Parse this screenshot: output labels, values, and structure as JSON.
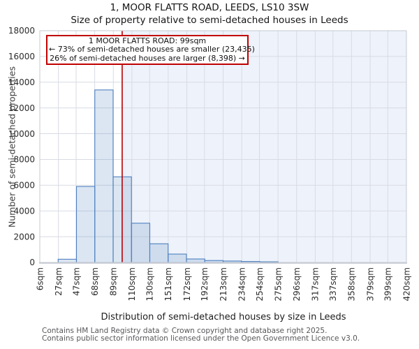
{
  "title": "1, MOOR FLATTS ROAD, LEEDS, LS10 3SW",
  "subtitle": "Size of property relative to semi-detached houses in Leeds",
  "annotation": {
    "line1": "1 MOOR FLATTS ROAD: 99sqm",
    "line2": "← 73% of semi-detached houses are smaller (23,435)",
    "line3": "26% of semi-detached houses are larger (8,398) →"
  },
  "footer": {
    "line1": "Contains HM Land Registry data © Crown copyright and database right 2025.",
    "line2": "Contains public sector information licensed under the Open Government Licence v3.0."
  },
  "chart_data": {
    "type": "bar",
    "title": "1, MOOR FLATTS ROAD, LEEDS, LS10 3SW",
    "subtitle": "Size of property relative to semi-detached houses in Leeds",
    "xlabel": "Distribution of semi-detached houses by size in Leeds",
    "ylabel": "Number of semi-detached properties",
    "xlim": [
      6,
      420
    ],
    "ylim": [
      0,
      18000
    ],
    "y_tick_step": 2000,
    "grid": true,
    "x_tick_values_sqm": [
      6,
      27,
      47,
      68,
      89,
      110,
      130,
      151,
      172,
      192,
      213,
      234,
      254,
      275,
      296,
      317,
      337,
      358,
      379,
      399,
      420
    ],
    "x_tick_labels": [
      "6sqm",
      "27sqm",
      "47sqm",
      "68sqm",
      "89sqm",
      "110sqm",
      "130sqm",
      "151sqm",
      "172sqm",
      "192sqm",
      "213sqm",
      "234sqm",
      "254sqm",
      "275sqm",
      "296sqm",
      "317sqm",
      "337sqm",
      "358sqm",
      "379sqm",
      "399sqm",
      "420sqm"
    ],
    "bin_edges_sqm": [
      6,
      26.7,
      47.4,
      68.1,
      88.8,
      109.5,
      130.2,
      150.9,
      171.6,
      192.3,
      213.0,
      233.7,
      254.4,
      275.1,
      295.8,
      316.5,
      337.2,
      357.9,
      378.6,
      399.3,
      420.0
    ],
    "values": [
      0,
      250,
      5900,
      13400,
      6650,
      3050,
      1450,
      650,
      270,
      150,
      110,
      75,
      50,
      0,
      0,
      0,
      0,
      0,
      0,
      0
    ],
    "marker_sqm": 99,
    "legend": null
  },
  "colors": {
    "bar_fill": "rgba(94,139,196,0.22)",
    "bar_border": "#4e81c0",
    "marker_line": "#b40000",
    "annotation_border": "#c00000",
    "shade_right_of_marker": "#eef2fa",
    "gridline": "#d8dbe3",
    "spine": "#c6cad2",
    "text": "#2b2b2b",
    "footer_text": "#57575a"
  }
}
